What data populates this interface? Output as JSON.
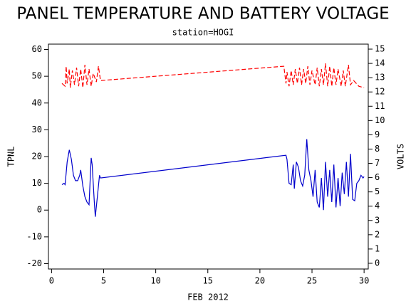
{
  "chart_data": {
    "type": "line",
    "title": "PANEL TEMPERATURE AND BATTERY VOLTAGE",
    "subtitle": "station=HOGI",
    "xlabel": "FEB 2012",
    "ylabel": "TPNL",
    "y2label": "VOLTS",
    "xlim": [
      -0.3,
      30.4
    ],
    "xticks": [
      0,
      5,
      10,
      15,
      20,
      25,
      30
    ],
    "ylim": [
      -22,
      62
    ],
    "yticks": [
      -20,
      -10,
      0,
      10,
      20,
      30,
      40,
      50,
      60
    ],
    "y2lim": [
      -0.4,
      15.35
    ],
    "y2ticks": [
      0,
      1,
      2,
      3,
      4,
      5,
      6,
      7,
      8,
      9,
      10,
      11,
      12,
      13,
      14,
      15
    ],
    "series": [
      {
        "color": "#0000cc",
        "linestyle": "solid",
        "x": [
          1.0,
          1.2,
          1.3,
          1.5,
          1.7,
          1.9,
          2.1,
          2.3,
          2.5,
          2.7,
          2.8,
          3.0,
          3.2,
          3.4,
          3.6,
          3.8,
          3.9,
          4.1,
          4.2,
          4.4,
          4.6,
          4.7,
          22.5,
          22.6,
          22.8,
          23.0,
          23.2,
          23.3,
          23.5,
          23.7,
          23.9,
          24.1,
          24.3,
          24.5,
          24.7,
          24.9,
          25.1,
          25.3,
          25.5,
          25.7,
          25.9,
          26.1,
          26.3,
          26.5,
          26.7,
          26.9,
          27.1,
          27.3,
          27.5,
          27.7,
          27.9,
          28.1,
          28.3,
          28.5,
          28.7,
          28.9,
          29.1,
          29.3,
          29.5,
          29.7,
          29.9,
          30.0
        ],
        "values": [
          9.5,
          10,
          9.5,
          18,
          22.5,
          19,
          13,
          11,
          11,
          13,
          15,
          9,
          5,
          3,
          2,
          19.5,
          17,
          3,
          -2.5,
          5,
          13,
          12,
          20.5,
          19,
          10,
          9.5,
          17,
          8,
          18,
          16,
          11,
          9,
          13,
          26.5,
          15,
          11,
          5,
          15,
          3,
          1,
          12,
          0,
          18,
          5,
          15,
          3,
          17,
          1,
          12,
          1.5,
          14,
          6,
          18,
          5,
          21,
          4,
          3.5,
          10,
          11,
          13,
          12,
          12.5
        ]
      },
      {
        "color": "#ff0000",
        "linestyle": "dashed",
        "axis": "y2",
        "x": [
          1.0,
          1.3,
          1.4,
          1.5,
          1.7,
          1.8,
          2.0,
          2.2,
          2.4,
          2.6,
          2.8,
          3.0,
          3.2,
          3.4,
          3.6,
          3.8,
          4.0,
          4.3,
          4.5,
          4.7,
          22.3,
          22.5,
          22.6,
          22.8,
          23.0,
          23.2,
          23.4,
          23.6,
          23.8,
          24.0,
          24.2,
          24.4,
          24.6,
          24.8,
          25.0,
          25.3,
          25.5,
          25.7,
          25.9,
          26.1,
          26.3,
          26.5,
          26.7,
          26.9,
          27.1,
          27.3,
          27.5,
          27.8,
          28.0,
          28.2,
          28.5,
          28.7,
          29.0,
          29.5,
          30.0
        ],
        "values": [
          12.6,
          12.4,
          13.8,
          12.6,
          13.6,
          12.3,
          13.5,
          12.5,
          13.7,
          12.4,
          13.6,
          12.3,
          13.9,
          12.5,
          13.6,
          12.4,
          13.3,
          12.7,
          13.8,
          12.8,
          13.8,
          12.6,
          13.4,
          12.4,
          13.5,
          12.5,
          13.6,
          12.6,
          13.7,
          12.5,
          13.6,
          12.6,
          13.8,
          12.5,
          13.5,
          12.5,
          13.7,
          12.4,
          13.6,
          12.5,
          14.0,
          12.4,
          13.8,
          12.4,
          13.7,
          12.5,
          13.6,
          12.4,
          13.5,
          12.4,
          13.9,
          12.5,
          12.8,
          12.4,
          12.3
        ]
      }
    ]
  }
}
